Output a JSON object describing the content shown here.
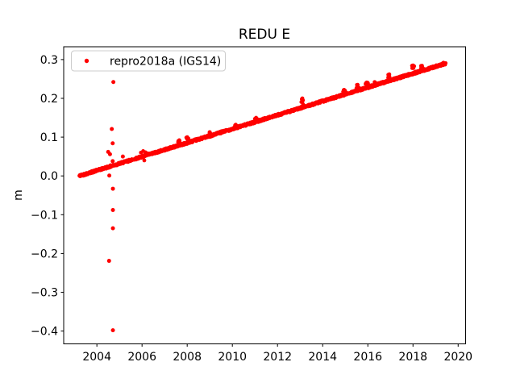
{
  "chart_data": {
    "type": "scatter",
    "title": "REDU E",
    "xlabel": "",
    "ylabel": "m",
    "grid": false,
    "legend": {
      "label": "repro2018a (IGS14)",
      "position": "upper left",
      "marker": "point",
      "border_color": "#cccccc",
      "background": "#ffffff"
    },
    "marker_color": "#ff0000",
    "axis_color": "#000000",
    "xlim": [
      2002.53,
      2020.33
    ],
    "ylim": [
      -0.433,
      0.333
    ],
    "x_ticks": [
      2004,
      2006,
      2008,
      2010,
      2012,
      2014,
      2016,
      2018,
      2020
    ],
    "y_ticks": [
      0.3,
      0.2,
      0.1,
      0.0,
      -0.1,
      -0.2,
      -0.3,
      -0.4
    ],
    "series": [
      {
        "name": "repro2018a (IGS14)",
        "representation": "dense_linear_trend_with_outliers",
        "trend": {
          "x_start": 2003.22,
          "x_end": 2019.45,
          "y_start": 0.0,
          "y_end": 0.29,
          "slope_m_per_yr": 0.0179,
          "noise_halfwidth_m": 0.003,
          "sample_step_yr": 0.01
        },
        "bumps": [
          [
            2007.65,
            0.092
          ],
          [
            2008.0,
            0.1
          ],
          [
            2009.0,
            0.113
          ],
          [
            2010.15,
            0.132
          ],
          [
            2011.05,
            0.15
          ],
          [
            2013.1,
            0.2
          ],
          [
            2014.95,
            0.222
          ],
          [
            2015.55,
            0.235
          ],
          [
            2015.95,
            0.241
          ],
          [
            2016.3,
            0.242
          ],
          [
            2016.95,
            0.262
          ],
          [
            2018.0,
            0.285
          ],
          [
            2018.4,
            0.284
          ],
          [
            2019.35,
            0.292
          ]
        ],
        "cluster_2006": [
          [
            2005.95,
            0.06
          ],
          [
            2006.05,
            0.064
          ],
          [
            2006.15,
            0.061
          ],
          [
            2006.25,
            0.058
          ],
          [
            2006.1,
            0.04
          ]
        ],
        "outliers": [
          [
            2004.73,
            0.242
          ],
          [
            2004.66,
            0.121
          ],
          [
            2004.7,
            0.084
          ],
          [
            2004.5,
            0.062
          ],
          [
            2004.58,
            0.056
          ],
          [
            2004.7,
            0.038
          ],
          [
            2004.55,
            0.001
          ],
          [
            2004.71,
            -0.033
          ],
          [
            2004.71,
            -0.088
          ],
          [
            2004.71,
            -0.135
          ],
          [
            2004.54,
            -0.219
          ],
          [
            2004.71,
            -0.398
          ],
          [
            2005.15,
            0.05
          ]
        ]
      }
    ]
  }
}
